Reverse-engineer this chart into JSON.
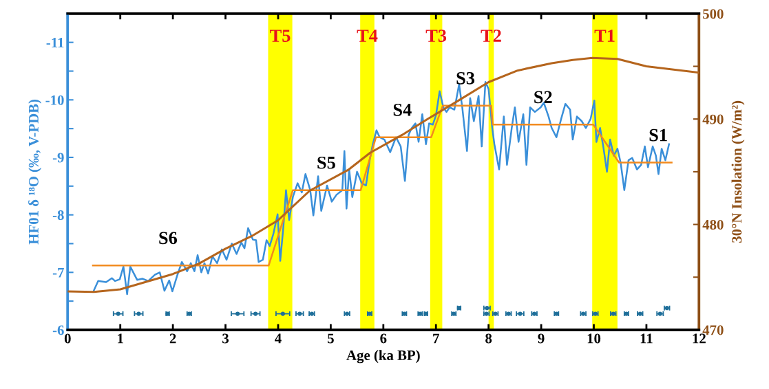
{
  "chart_data": {
    "type": "line",
    "xlabel": "Age (ka BP)",
    "ylabel": "HF01 δ ¹⁸O (‰, V-PDB)",
    "y2label": "30°N Insolation (W/m²)",
    "xlim": [
      0,
      12
    ],
    "xticks": [
      0,
      1,
      2,
      3,
      4,
      5,
      6,
      7,
      8,
      9,
      10,
      11,
      12
    ],
    "ylim": [
      -6,
      -11.5
    ],
    "yticks": [
      -6,
      {
        "value": -6.5,
        "label": null
      },
      -7,
      {
        "value": -7.5,
        "label": null
      },
      -8,
      {
        "value": -8.5,
        "label": null
      },
      -9,
      {
        "value": -9.5,
        "label": null
      },
      -10,
      {
        "value": -10.5,
        "label": null
      },
      -11,
      {
        "value": -11.5,
        "label": null
      }
    ],
    "y2lim": [
      470,
      500
    ],
    "y2ticks": [
      470,
      {
        "value": 475,
        "label": null
      },
      480,
      {
        "value": 485,
        "label": null
      },
      490,
      {
        "value": 495,
        "label": null
      },
      500
    ],
    "series": [
      {
        "color": "#3a8fd9",
        "x": [
          0.49,
          0.58,
          0.73,
          0.84,
          0.9,
          0.99,
          1.06,
          1.13,
          1.19,
          1.32,
          1.42,
          1.53,
          1.66,
          1.75,
          1.84,
          1.93,
          1.99,
          2.08,
          2.17,
          2.27,
          2.34,
          2.41,
          2.47,
          2.54,
          2.6,
          2.67,
          2.75,
          2.84,
          2.93,
          3.02,
          3.12,
          3.21,
          3.3,
          3.36,
          3.43,
          3.52,
          3.58,
          3.63,
          3.71,
          3.78,
          3.84,
          3.91,
          3.99,
          4.04,
          4.1,
          4.15,
          4.21,
          4.28,
          4.37,
          4.45,
          4.52,
          4.61,
          4.67,
          4.76,
          4.82,
          4.93,
          5.02,
          5.11,
          5.22,
          5.26,
          5.3,
          5.35,
          5.41,
          5.5,
          5.59,
          5.67,
          5.74,
          5.8,
          5.87,
          5.93,
          6.02,
          6.13,
          6.24,
          6.33,
          6.41,
          6.48,
          6.54,
          6.61,
          6.67,
          6.74,
          6.81,
          6.87,
          6.94,
          7.0,
          7.07,
          7.14,
          7.2,
          7.26,
          7.35,
          7.44,
          7.5,
          7.59,
          7.65,
          7.72,
          7.81,
          7.87,
          7.94,
          8.0,
          8.07,
          8.11,
          8.2,
          8.29,
          8.35,
          8.44,
          8.5,
          8.57,
          8.66,
          8.72,
          8.79,
          8.88,
          8.99,
          9.05,
          9.14,
          9.2,
          9.29,
          9.38,
          9.46,
          9.55,
          9.6,
          9.68,
          9.77,
          9.85,
          9.94,
          10.01,
          10.05,
          10.12,
          10.18,
          10.25,
          10.31,
          10.38,
          10.45,
          10.51,
          10.58,
          10.66,
          10.73,
          10.82,
          10.9,
          10.97,
          11.03,
          11.12,
          11.18,
          11.23,
          11.29,
          11.36,
          11.43
        ],
        "values": [
          -6.67,
          -6.85,
          -6.83,
          -6.9,
          -6.85,
          -6.88,
          -7.1,
          -6.62,
          -7.1,
          -6.87,
          -6.89,
          -6.85,
          -6.96,
          -7.0,
          -6.68,
          -6.86,
          -6.67,
          -6.94,
          -7.18,
          -7.02,
          -7.16,
          -7.02,
          -7.3,
          -7.0,
          -7.16,
          -6.98,
          -7.28,
          -7.16,
          -7.4,
          -7.22,
          -7.5,
          -7.32,
          -7.52,
          -7.42,
          -7.77,
          -7.57,
          -7.56,
          -7.18,
          -7.22,
          -7.56,
          -7.46,
          -7.67,
          -8.01,
          -7.2,
          -7.79,
          -8.43,
          -7.91,
          -8.31,
          -8.55,
          -8.39,
          -8.71,
          -8.43,
          -7.99,
          -8.67,
          -8.07,
          -8.51,
          -8.23,
          -8.35,
          -8.43,
          -9.11,
          -8.11,
          -8.79,
          -8.31,
          -8.75,
          -8.55,
          -8.51,
          -8.95,
          -9.23,
          -9.47,
          -9.35,
          -9.31,
          -9.09,
          -9.35,
          -9.19,
          -8.59,
          -9.39,
          -9.51,
          -9.59,
          -9.27,
          -9.75,
          -9.23,
          -9.59,
          -9.57,
          -9.73,
          -10.15,
          -9.87,
          -9.79,
          -9.87,
          -9.83,
          -10.27,
          -9.87,
          -9.11,
          -10.03,
          -9.63,
          -10.07,
          -9.19,
          -10.31,
          -10.19,
          -9.51,
          -9.23,
          -8.79,
          -9.71,
          -8.87,
          -9.51,
          -9.87,
          -9.27,
          -9.75,
          -8.87,
          -9.87,
          -9.79,
          -9.87,
          -9.95,
          -9.71,
          -9.51,
          -9.35,
          -9.67,
          -9.93,
          -9.83,
          -9.31,
          -9.71,
          -9.63,
          -9.51,
          -9.67,
          -9.99,
          -9.27,
          -9.51,
          -9.19,
          -8.75,
          -9.31,
          -9.03,
          -9.15,
          -8.91,
          -8.43,
          -8.95,
          -8.99,
          -8.79,
          -8.87,
          -9.19,
          -8.83,
          -9.19,
          -9.03,
          -8.71,
          -9.15,
          -8.95,
          -9.23
        ]
      },
      {
        "color": "#f28a1e",
        "x": [
          0.48,
          3.82,
          4.28,
          5.57,
          5.86,
          6.91,
          7.13,
          8.05,
          8.08,
          9.99,
          10.48,
          11.48
        ],
        "values": [
          -7.12,
          -7.12,
          -8.43,
          -8.43,
          -9.35,
          -9.35,
          -9.9,
          -9.9,
          -9.57,
          -9.57,
          -8.91,
          -8.91
        ]
      },
      {
        "axis": "y2",
        "color": "#b5651d",
        "x": [
          0,
          0.5,
          1.0,
          2.0,
          2.5,
          3.0,
          3.5,
          4.0,
          4.6,
          5.34,
          5.75,
          6.36,
          6.84,
          7.41,
          8.0,
          8.55,
          9.2,
          9.6,
          9.97,
          10.45,
          11.0,
          12.0
        ],
        "values": [
          473.65,
          473.6,
          473.85,
          475.3,
          476.3,
          477.7,
          478.9,
          480.4,
          483.2,
          485.2,
          486.8,
          488.5,
          490.0,
          491.7,
          493.5,
          494.6,
          495.3,
          495.6,
          495.8,
          495.7,
          495.0,
          494.4
        ]
      },
      {
        "type": "scatter",
        "marker": "circle",
        "color": "#1f6f9a",
        "x": [
          0.96,
          1.35,
          1.9,
          2.31,
          3.23,
          3.57,
          4.09,
          4.41,
          4.64,
          5.31,
          5.74,
          6.4,
          6.7,
          6.81,
          7.34,
          7.44,
          7.97,
          7.96,
          8.13,
          8.38,
          8.6,
          8.87,
          9.29,
          9.8,
          10.03,
          10.37,
          10.62,
          10.88,
          11.26,
          11.39
        ],
        "values": [
          -6.28,
          -6.28,
          -6.28,
          -6.28,
          -6.28,
          -6.28,
          -6.28,
          -6.28,
          -6.28,
          -6.28,
          -6.28,
          -6.28,
          -6.28,
          -6.28,
          -6.28,
          -6.38,
          -6.38,
          -6.28,
          -6.28,
          -6.28,
          -6.28,
          -6.28,
          -6.28,
          -6.28,
          -6.28,
          -6.28,
          -6.28,
          -6.28,
          -6.28,
          -6.38
        ],
        "xerrors": [
          0.09,
          0.08,
          0.03,
          0.04,
          0.12,
          0.085,
          0.13,
          0.07,
          0.05,
          0.05,
          0.04,
          0.04,
          0.04,
          0.03,
          0.04,
          0.03,
          0.06,
          0.05,
          0.05,
          0.05,
          0.07,
          0.05,
          0.04,
          0.05,
          0.05,
          0.05,
          0.04,
          0.05,
          0.06,
          0.05
        ]
      }
    ],
    "bands": [
      {
        "axis": "x",
        "from": 3.81,
        "to": 4.27,
        "label": "T5",
        "color": "#ffff00"
      },
      {
        "axis": "x",
        "from": 5.56,
        "to": 5.83,
        "label": "T4",
        "color": "#ffff00"
      },
      {
        "axis": "x",
        "from": 6.89,
        "to": 7.12,
        "label": "T3",
        "color": "#ffff00"
      },
      {
        "axis": "x",
        "from": 8.0,
        "to": 8.1,
        "label": "T2",
        "color": "#ffff00"
      },
      {
        "axis": "x",
        "from": 9.97,
        "to": 10.45,
        "label": "T1",
        "color": "#ffff00"
      }
    ],
    "annotations": [
      "S6",
      "S5",
      "S4",
      "S3",
      "S2",
      "S1"
    ]
  }
}
